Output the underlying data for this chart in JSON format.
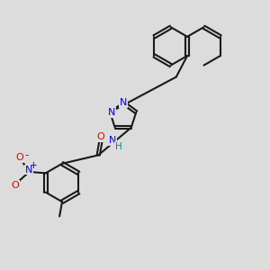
{
  "background_color": "#dcdcdc",
  "bond_color": "#1a1a1a",
  "N_color": "#0000ee",
  "O_color": "#ee0000",
  "H_color": "#008b8b",
  "lw": 1.5,
  "xlim": [
    0,
    10
  ],
  "ylim": [
    0,
    10
  ]
}
